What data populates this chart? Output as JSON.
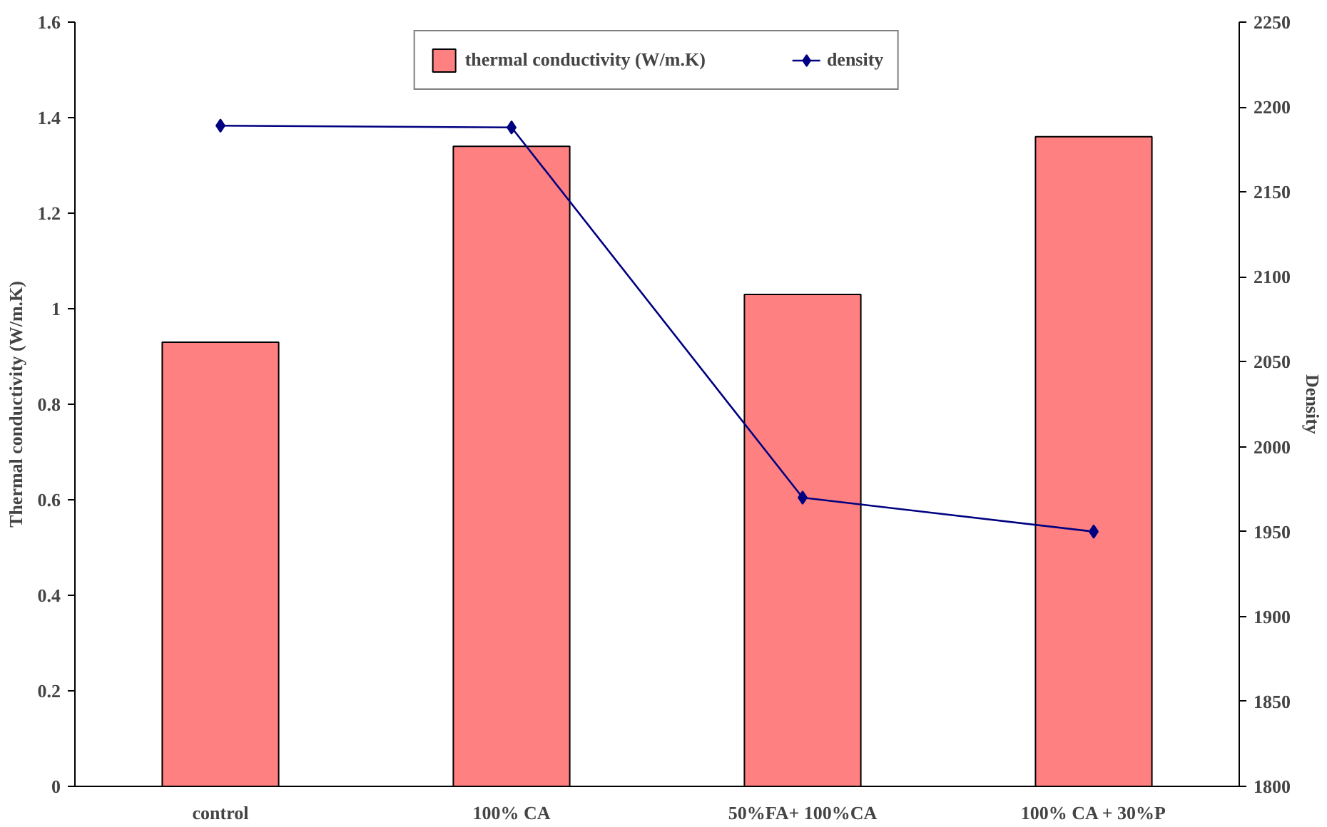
{
  "chart_data": {
    "type": "bar",
    "categories": [
      "control",
      "100% CA",
      "50%FA+ 100%CA",
      "100% CA + 30%P"
    ],
    "ylabel": "Thermal conductivity (W/m.K)",
    "y2label": "Density",
    "ylim": [
      0,
      1.6
    ],
    "yticks": [
      0,
      0.2,
      0.4,
      0.6,
      0.8,
      1,
      1.2,
      1.4,
      1.6
    ],
    "y2lim": [
      1800,
      2250
    ],
    "y2ticks": [
      1800,
      1850,
      1900,
      1950,
      2000,
      2050,
      2100,
      2150,
      2200,
      2250
    ],
    "series": [
      {
        "name": "thermal conductivity (W/m.K)",
        "color": "#ff8080",
        "values": [
          0.93,
          1.34,
          1.03,
          1.36
        ]
      },
      {
        "name": "density",
        "type": "line",
        "axis": "y2",
        "color": "#000080",
        "marker": "diamond",
        "values": [
          2189,
          2188,
          1970,
          1950
        ]
      }
    ],
    "legend": "top",
    "grid": false
  }
}
